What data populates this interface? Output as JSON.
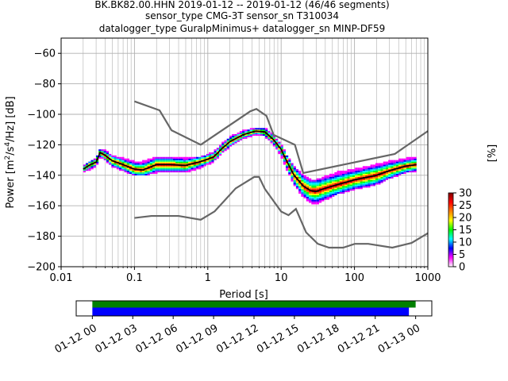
{
  "chart_data": {
    "type": "heatmap",
    "title_lines": [
      "BK.BK82.00.HHN   2019-01-12 -- 2019-01-12  (46/46 segments)",
      "sensor_type CMG-3T sensor_sn T310034",
      "datalogger_type GuralpMinimus+ datalogger_sn MINP-DF59"
    ],
    "xlabel": "Period [s]",
    "ylabel_parts": {
      "pre": "Power [m",
      "sup1": "2",
      "mid": "/s",
      "sup2": "4",
      "post": "/Hz] [dB]"
    },
    "x_scale": "log",
    "xlim": [
      0.01,
      1000
    ],
    "ylim": [
      -200,
      -50
    ],
    "x_ticks": [
      {
        "value": 0.01,
        "label": "0.01"
      },
      {
        "value": 0.1,
        "label": "0.1"
      },
      {
        "value": 1,
        "label": "1"
      },
      {
        "value": 10,
        "label": "10"
      },
      {
        "value": 100,
        "label": "100"
      },
      {
        "value": 1000,
        "label": "1000"
      }
    ],
    "y_ticks": [
      {
        "value": -60,
        "label": "−60"
      },
      {
        "value": -80,
        "label": "−80"
      },
      {
        "value": -100,
        "label": "−100"
      },
      {
        "value": -120,
        "label": "−120"
      },
      {
        "value": -140,
        "label": "−140"
      },
      {
        "value": -160,
        "label": "−160"
      },
      {
        "value": -180,
        "label": "−180"
      },
      {
        "value": -200,
        "label": "−200"
      }
    ],
    "grid": true,
    "colorbar": {
      "label": "[%]",
      "range": [
        0,
        30
      ],
      "ticks": [
        {
          "value": 0,
          "label": "0"
        },
        {
          "value": 5,
          "label": "5"
        },
        {
          "value": 10,
          "label": "10"
        },
        {
          "value": 15,
          "label": "15"
        },
        {
          "value": 20,
          "label": "20"
        },
        {
          "value": 25,
          "label": "25"
        },
        {
          "value": 30,
          "label": "30"
        }
      ],
      "colors": [
        "#ffffff",
        "#ff00ff",
        "#0000ff",
        "#00ffff",
        "#00ff00",
        "#ffff00",
        "#ff8000",
        "#ff0000",
        "#800000"
      ]
    },
    "noise_model_color": "#666666",
    "high_noise_model": [
      [
        0.1,
        -91.5
      ],
      [
        0.22,
        -97.4
      ],
      [
        0.32,
        -110.5
      ],
      [
        0.8,
        -120
      ],
      [
        3.8,
        -98
      ],
      [
        4.6,
        -96.5
      ],
      [
        6.3,
        -101
      ],
      [
        7.9,
        -113.5
      ],
      [
        15.4,
        -120
      ],
      [
        20,
        -138.5
      ],
      [
        354.8,
        -126
      ],
      [
        1000,
        -111
      ]
    ],
    "low_noise_model": [
      [
        0.1,
        -168
      ],
      [
        0.17,
        -166.7
      ],
      [
        0.4,
        -166.7
      ],
      [
        0.8,
        -169.2
      ],
      [
        1.24,
        -163.7
      ],
      [
        2.4,
        -148.6
      ],
      [
        4.3,
        -141.1
      ],
      [
        5.0,
        -141.1
      ],
      [
        6.0,
        -149
      ],
      [
        10.0,
        -163.8
      ],
      [
        12.6,
        -166.2
      ],
      [
        15.9,
        -162.1
      ],
      [
        21.9,
        -177.5
      ],
      [
        31.6,
        -185
      ],
      [
        45,
        -187.5
      ],
      [
        70,
        -187.5
      ],
      [
        101,
        -185
      ],
      [
        154,
        -185
      ],
      [
        328,
        -187.5
      ],
      [
        600,
        -184.4
      ],
      [
        1000,
        -178
      ]
    ],
    "mean_curve_color": "#000000",
    "mean_psd": [
      [
        0.02,
        -136
      ],
      [
        0.025,
        -133
      ],
      [
        0.03,
        -131.5
      ],
      [
        0.034,
        -125
      ],
      [
        0.04,
        -127
      ],
      [
        0.05,
        -130.5
      ],
      [
        0.07,
        -133
      ],
      [
        0.1,
        -136
      ],
      [
        0.13,
        -136.5
      ],
      [
        0.2,
        -133
      ],
      [
        0.3,
        -133
      ],
      [
        0.5,
        -133.5
      ],
      [
        0.8,
        -131
      ],
      [
        1.2,
        -128
      ],
      [
        1.6,
        -122
      ],
      [
        2.0,
        -118
      ],
      [
        3.0,
        -113.5
      ],
      [
        4.5,
        -111
      ],
      [
        6.0,
        -111.5
      ],
      [
        8.0,
        -117
      ],
      [
        10.0,
        -123
      ],
      [
        12.0,
        -131
      ],
      [
        15.0,
        -140
      ],
      [
        20.0,
        -147
      ],
      [
        25.0,
        -150
      ],
      [
        30.0,
        -150.5
      ],
      [
        40.0,
        -148.5
      ],
      [
        60.0,
        -146
      ],
      [
        100.0,
        -143
      ],
      [
        200.0,
        -140
      ],
      [
        300.0,
        -137
      ],
      [
        500.0,
        -134
      ],
      [
        700.0,
        -133
      ]
    ],
    "density_band": [
      {
        "period": 0.02,
        "low": -138,
        "high": -134,
        "peak": -136
      },
      {
        "period": 0.025,
        "low": -136,
        "high": -131,
        "peak": -133
      },
      {
        "period": 0.03,
        "low": -134,
        "high": -129,
        "peak": -131.5
      },
      {
        "period": 0.034,
        "low": -128,
        "high": -123,
        "peak": -125
      },
      {
        "period": 0.04,
        "low": -130,
        "high": -124,
        "peak": -127
      },
      {
        "period": 0.05,
        "low": -134,
        "high": -127,
        "peak": -130.5
      },
      {
        "period": 0.07,
        "low": -137,
        "high": -129,
        "peak": -133
      },
      {
        "period": 0.1,
        "low": -140,
        "high": -131,
        "peak": -136
      },
      {
        "period": 0.13,
        "low": -140,
        "high": -131,
        "peak": -136.5
      },
      {
        "period": 0.2,
        "low": -138,
        "high": -128,
        "peak": -133
      },
      {
        "period": 0.3,
        "low": -138,
        "high": -128,
        "peak": -133
      },
      {
        "period": 0.5,
        "low": -138,
        "high": -129,
        "peak": -133.5
      },
      {
        "period": 0.8,
        "low": -135,
        "high": -128,
        "peak": -131
      },
      {
        "period": 1.2,
        "low": -131,
        "high": -125,
        "peak": -128
      },
      {
        "period": 1.6,
        "low": -125,
        "high": -119,
        "peak": -122
      },
      {
        "period": 2.0,
        "low": -121,
        "high": -115,
        "peak": -118
      },
      {
        "period": 3.0,
        "low": -116,
        "high": -111,
        "peak": -113.5
      },
      {
        "period": 4.5,
        "low": -113,
        "high": -109,
        "peak": -111
      },
      {
        "period": 6.0,
        "low": -114,
        "high": -109,
        "peak": -111.5
      },
      {
        "period": 8.0,
        "low": -120,
        "high": -114,
        "peak": -117
      },
      {
        "period": 10.0,
        "low": -127,
        "high": -120,
        "peak": -123
      },
      {
        "period": 12.0,
        "low": -136,
        "high": -127,
        "peak": -131
      },
      {
        "period": 15.0,
        "low": -146,
        "high": -134,
        "peak": -140
      },
      {
        "period": 20.0,
        "low": -154,
        "high": -140,
        "peak": -147
      },
      {
        "period": 25.0,
        "low": -158,
        "high": -143,
        "peak": -150
      },
      {
        "period": 30.0,
        "low": -159,
        "high": -143,
        "peak": -150.5
      },
      {
        "period": 40.0,
        "low": -156,
        "high": -141,
        "peak": -148.5
      },
      {
        "period": 60.0,
        "low": -152,
        "high": -138,
        "peak": -146
      },
      {
        "period": 100.0,
        "low": -149,
        "high": -136,
        "peak": -143
      },
      {
        "period": 200.0,
        "low": -146,
        "high": -133,
        "peak": -140
      },
      {
        "period": 300.0,
        "low": -142,
        "high": -131,
        "peak": -137
      },
      {
        "period": 500.0,
        "low": -138,
        "high": -129,
        "peak": -134
      },
      {
        "period": 700.0,
        "low": -137,
        "high": -128,
        "peak": -133
      }
    ],
    "timeline": {
      "x_ticks": [
        {
          "hour": 0,
          "label": "01-12 00"
        },
        {
          "hour": 3,
          "label": "01-12 03"
        },
        {
          "hour": 6,
          "label": "01-12 06"
        },
        {
          "hour": 9,
          "label": "01-12 09"
        },
        {
          "hour": 12,
          "label": "01-12 12"
        },
        {
          "hour": 15,
          "label": "01-12 15"
        },
        {
          "hour": 18,
          "label": "01-12 18"
        },
        {
          "hour": 21,
          "label": "01-12 21"
        },
        {
          "hour": 24,
          "label": "01-13 00"
        }
      ],
      "range_hours": [
        -1.2,
        25.2
      ],
      "data_bar": {
        "start_hour": 0,
        "end_hour": 24,
        "color": "#008000"
      },
      "psd_bar": {
        "start_hour": 0,
        "end_hour": 23.5,
        "color": "#0000ff"
      }
    }
  }
}
